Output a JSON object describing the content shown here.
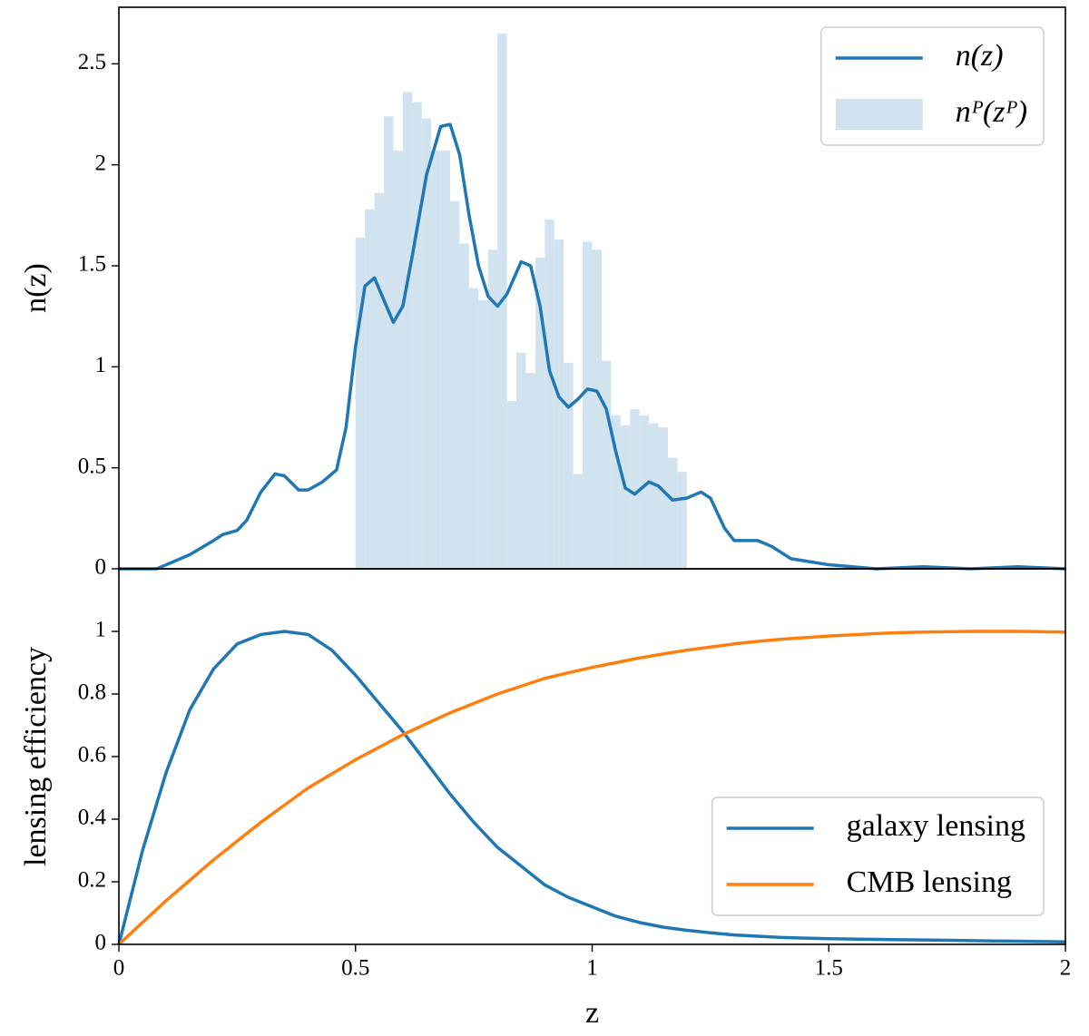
{
  "chart_data": [
    {
      "type": "line",
      "ylabel": "n(z)",
      "xlim": [
        0,
        2
      ],
      "ylim": [
        0,
        2.78
      ],
      "yticks": [
        0,
        0.5,
        1,
        1.5,
        2,
        2.5
      ],
      "legend": "upper right",
      "x": [
        0,
        0.05,
        0.08,
        0.1,
        0.15,
        0.2,
        0.22,
        0.25,
        0.27,
        0.3,
        0.33,
        0.35,
        0.38,
        0.4,
        0.43,
        0.46,
        0.48,
        0.5,
        0.52,
        0.54,
        0.56,
        0.58,
        0.6,
        0.62,
        0.65,
        0.68,
        0.7,
        0.72,
        0.74,
        0.76,
        0.78,
        0.8,
        0.82,
        0.85,
        0.87,
        0.89,
        0.91,
        0.93,
        0.95,
        0.97,
        0.99,
        1.01,
        1.03,
        1.05,
        1.07,
        1.09,
        1.12,
        1.14,
        1.17,
        1.2,
        1.23,
        1.25,
        1.28,
        1.3,
        1.35,
        1.38,
        1.42,
        1.5,
        1.6,
        1.7,
        1.8,
        1.9,
        2.0
      ],
      "series": [
        {
          "name": "n(z)",
          "color": "#1f77b4",
          "values": [
            0,
            0,
            0,
            0.02,
            0.07,
            0.14,
            0.17,
            0.19,
            0.24,
            0.38,
            0.47,
            0.46,
            0.39,
            0.39,
            0.43,
            0.49,
            0.7,
            1.1,
            1.4,
            1.44,
            1.33,
            1.22,
            1.3,
            1.55,
            1.95,
            2.19,
            2.2,
            2.05,
            1.75,
            1.5,
            1.35,
            1.3,
            1.36,
            1.52,
            1.5,
            1.3,
            0.98,
            0.85,
            0.8,
            0.84,
            0.89,
            0.88,
            0.79,
            0.58,
            0.4,
            0.37,
            0.43,
            0.41,
            0.34,
            0.35,
            0.38,
            0.35,
            0.2,
            0.14,
            0.14,
            0.11,
            0.05,
            0.02,
            0,
            0.01,
            0,
            0.01,
            0
          ]
        }
      ],
      "histogram": {
        "name": "nᴾ(zᴾ)",
        "color": "#d2e3f0",
        "bins": [
          0.5,
          0.52,
          0.54,
          0.56,
          0.58,
          0.6,
          0.62,
          0.64,
          0.66,
          0.68,
          0.7,
          0.72,
          0.74,
          0.76,
          0.78,
          0.8,
          0.82,
          0.84,
          0.86,
          0.88,
          0.9,
          0.92,
          0.94,
          0.96,
          0.98,
          1.0,
          1.02,
          1.04,
          1.06,
          1.08,
          1.1,
          1.12,
          1.14,
          1.16,
          1.18,
          1.2
        ],
        "counts": [
          1.64,
          1.78,
          1.86,
          2.24,
          2.07,
          2.36,
          2.31,
          2.23,
          2.07,
          2.07,
          1.82,
          1.61,
          1.39,
          1.33,
          1.58,
          2.65,
          0.83,
          1.07,
          0.97,
          1.54,
          1.73,
          1.63,
          1.02,
          0.47,
          1.62,
          1.58,
          1.03,
          0.76,
          0.71,
          0.79,
          0.76,
          0.72,
          0.7,
          0.55,
          0.48
        ]
      }
    },
    {
      "type": "line",
      "xlabel": "z",
      "ylabel": "lensing efficiency",
      "xlim": [
        0,
        2
      ],
      "ylim": [
        0,
        1.2
      ],
      "xticks": [
        0,
        0.5,
        1,
        1.5,
        2
      ],
      "yticks": [
        0,
        0.2,
        0.4,
        0.6,
        0.8,
        1
      ],
      "legend": "lower right",
      "x": [
        0,
        0.05,
        0.1,
        0.15,
        0.2,
        0.25,
        0.3,
        0.35,
        0.4,
        0.45,
        0.5,
        0.55,
        0.6,
        0.65,
        0.7,
        0.75,
        0.8,
        0.85,
        0.9,
        0.95,
        1.0,
        1.05,
        1.1,
        1.15,
        1.2,
        1.25,
        1.3,
        1.35,
        1.4,
        1.45,
        1.5,
        1.55,
        1.6,
        1.65,
        1.7,
        1.75,
        1.8,
        1.85,
        1.9,
        1.95,
        2.0
      ],
      "series": [
        {
          "name": "galaxy lensing",
          "color": "#1f77b4",
          "values": [
            0,
            0.3,
            0.55,
            0.75,
            0.88,
            0.96,
            0.99,
            1.0,
            0.99,
            0.94,
            0.86,
            0.77,
            0.68,
            0.58,
            0.48,
            0.39,
            0.31,
            0.25,
            0.19,
            0.15,
            0.12,
            0.09,
            0.07,
            0.055,
            0.045,
            0.037,
            0.03,
            0.026,
            0.022,
            0.02,
            0.018,
            0.017,
            0.016,
            0.015,
            0.014,
            0.013,
            0.012,
            0.011,
            0.01,
            0.009,
            0.008
          ]
        },
        {
          "name": "CMB lensing",
          "color": "#ff7f0e",
          "values": [
            0,
            0.07,
            0.14,
            0.205,
            0.27,
            0.33,
            0.39,
            0.445,
            0.5,
            0.545,
            0.59,
            0.63,
            0.67,
            0.705,
            0.74,
            0.77,
            0.8,
            0.825,
            0.85,
            0.868,
            0.885,
            0.9,
            0.915,
            0.928,
            0.94,
            0.95,
            0.96,
            0.968,
            0.975,
            0.98,
            0.985,
            0.989,
            0.993,
            0.996,
            0.998,
            0.999,
            1.0,
            1.0,
            1.0,
            0.999,
            0.998
          ]
        }
      ]
    }
  ]
}
